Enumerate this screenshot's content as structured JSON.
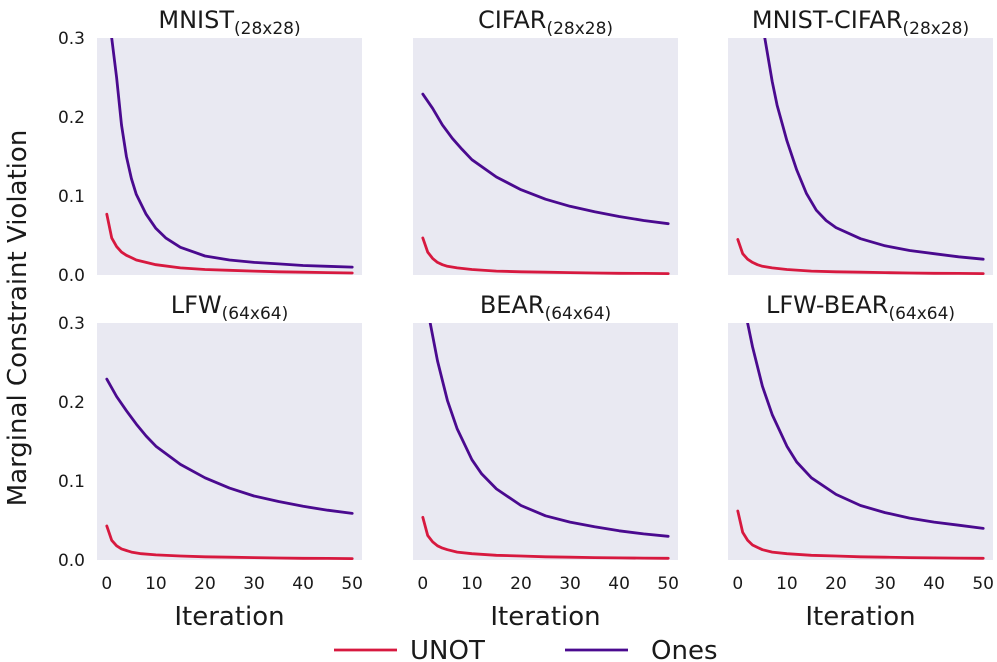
{
  "figure": {
    "ylabel": "Marginal Constraint Violation",
    "xlabel": "Iteration",
    "legend": [
      {
        "name": "UNOT",
        "color": "#d7193f"
      },
      {
        "name": "Ones",
        "color": "#4a0a8f"
      }
    ],
    "colors": {
      "panel_bg": "#e9e9f2",
      "unot": "#d7193f",
      "ones": "#4a0a8f"
    }
  },
  "chart_data": [
    {
      "type": "line",
      "title": "MNIST",
      "subtitle": "(28x28)",
      "xlim": [
        -2,
        52
      ],
      "ylim": [
        0,
        0.3
      ],
      "xticks": [
        0,
        10,
        20,
        30,
        40,
        50
      ],
      "yticks": [
        0.0,
        0.1,
        0.2,
        0.3
      ],
      "series": [
        {
          "name": "UNOT",
          "x": [
            0,
            1,
            2,
            3,
            4,
            5,
            6,
            8,
            10,
            15,
            20,
            25,
            30,
            35,
            40,
            45,
            50
          ],
          "values": [
            0.077,
            0.047,
            0.036,
            0.029,
            0.025,
            0.022,
            0.019,
            0.016,
            0.013,
            0.009,
            0.007,
            0.006,
            0.005,
            0.004,
            0.0035,
            0.003,
            0.0025
          ]
        },
        {
          "name": "Ones",
          "x": [
            1,
            2,
            3,
            4,
            5,
            6,
            8,
            10,
            12,
            15,
            20,
            25,
            30,
            35,
            40,
            45,
            50
          ],
          "values": [
            0.3,
            0.25,
            0.19,
            0.15,
            0.122,
            0.102,
            0.077,
            0.059,
            0.047,
            0.035,
            0.024,
            0.019,
            0.016,
            0.014,
            0.012,
            0.011,
            0.01
          ]
        }
      ]
    },
    {
      "type": "line",
      "title": "CIFAR",
      "subtitle": "(28x28)",
      "xlim": [
        -2,
        52
      ],
      "ylim": [
        0,
        0.3
      ],
      "xticks": [
        0,
        10,
        20,
        30,
        40,
        50
      ],
      "yticks": [
        0.0,
        0.1,
        0.2,
        0.3
      ],
      "series": [
        {
          "name": "UNOT",
          "x": [
            0,
            1,
            2,
            3,
            4,
            5,
            7,
            10,
            15,
            20,
            25,
            30,
            35,
            40,
            45,
            50
          ],
          "values": [
            0.047,
            0.029,
            0.021,
            0.016,
            0.013,
            0.011,
            0.009,
            0.007,
            0.005,
            0.004,
            0.0035,
            0.003,
            0.0025,
            0.0022,
            0.002,
            0.0018
          ]
        },
        {
          "name": "Ones",
          "x": [
            0,
            2,
            4,
            6,
            8,
            10,
            15,
            20,
            25,
            30,
            35,
            40,
            45,
            50
          ],
          "values": [
            0.229,
            0.211,
            0.19,
            0.173,
            0.159,
            0.146,
            0.124,
            0.108,
            0.096,
            0.087,
            0.08,
            0.074,
            0.069,
            0.065
          ]
        }
      ]
    },
    {
      "type": "line",
      "title": "MNIST-CIFAR",
      "subtitle": "(28x28)",
      "xlim": [
        -2,
        52
      ],
      "ylim": [
        0,
        0.3
      ],
      "xticks": [
        0,
        10,
        20,
        30,
        40,
        50
      ],
      "yticks": [
        0.0,
        0.1,
        0.2,
        0.3
      ],
      "series": [
        {
          "name": "UNOT",
          "x": [
            0,
            1,
            2,
            3,
            4,
            5,
            7,
            10,
            15,
            20,
            25,
            30,
            35,
            40,
            45,
            50
          ],
          "values": [
            0.045,
            0.027,
            0.02,
            0.016,
            0.013,
            0.011,
            0.009,
            0.007,
            0.005,
            0.004,
            0.0035,
            0.003,
            0.0025,
            0.0022,
            0.002,
            0.0018
          ]
        },
        {
          "name": "Ones",
          "x": [
            5.5,
            7,
            8,
            10,
            12,
            14,
            16,
            18,
            20,
            25,
            30,
            35,
            40,
            45,
            50
          ],
          "values": [
            0.3,
            0.245,
            0.215,
            0.17,
            0.133,
            0.103,
            0.082,
            0.069,
            0.06,
            0.046,
            0.037,
            0.031,
            0.027,
            0.023,
            0.02
          ]
        }
      ]
    },
    {
      "type": "line",
      "title": "LFW",
      "subtitle": "(64x64)",
      "xlim": [
        -2,
        52
      ],
      "ylim": [
        0,
        0.3
      ],
      "xticks": [
        0,
        10,
        20,
        30,
        40,
        50
      ],
      "yticks": [
        0.0,
        0.1,
        0.2,
        0.3
      ],
      "series": [
        {
          "name": "UNOT",
          "x": [
            0,
            1,
            2,
            3,
            4,
            5,
            7,
            10,
            15,
            20,
            25,
            30,
            35,
            40,
            45,
            50
          ],
          "values": [
            0.043,
            0.025,
            0.018,
            0.014,
            0.012,
            0.01,
            0.008,
            0.0065,
            0.005,
            0.004,
            0.0035,
            0.003,
            0.0025,
            0.0022,
            0.002,
            0.0018
          ]
        },
        {
          "name": "Ones",
          "x": [
            0,
            2,
            4,
            6,
            8,
            10,
            15,
            20,
            25,
            30,
            35,
            40,
            45,
            50
          ],
          "values": [
            0.229,
            0.207,
            0.189,
            0.172,
            0.157,
            0.144,
            0.121,
            0.104,
            0.091,
            0.081,
            0.074,
            0.068,
            0.063,
            0.059
          ]
        }
      ]
    },
    {
      "type": "line",
      "title": "BEAR",
      "subtitle": "(64x64)",
      "xlim": [
        -2,
        52
      ],
      "ylim": [
        0,
        0.3
      ],
      "xticks": [
        0,
        10,
        20,
        30,
        40,
        50
      ],
      "yticks": [
        0.0,
        0.1,
        0.2,
        0.3
      ],
      "series": [
        {
          "name": "UNOT",
          "x": [
            0,
            1,
            2,
            3,
            4,
            5,
            7,
            10,
            15,
            20,
            25,
            30,
            35,
            40,
            45,
            50
          ],
          "values": [
            0.054,
            0.031,
            0.023,
            0.018,
            0.015,
            0.013,
            0.01,
            0.008,
            0.006,
            0.005,
            0.004,
            0.0035,
            0.003,
            0.0027,
            0.0024,
            0.0022
          ]
        },
        {
          "name": "Ones",
          "x": [
            1.5,
            3,
            5,
            7,
            10,
            12,
            15,
            20,
            25,
            30,
            35,
            40,
            45,
            50
          ],
          "values": [
            0.3,
            0.252,
            0.202,
            0.166,
            0.127,
            0.109,
            0.09,
            0.069,
            0.056,
            0.048,
            0.042,
            0.037,
            0.033,
            0.03
          ]
        }
      ]
    },
    {
      "type": "line",
      "title": "LFW-BEAR",
      "subtitle": "(64x64)",
      "xlim": [
        -2,
        52
      ],
      "ylim": [
        0,
        0.3
      ],
      "xticks": [
        0,
        10,
        20,
        30,
        40,
        50
      ],
      "yticks": [
        0.0,
        0.1,
        0.2,
        0.3
      ],
      "series": [
        {
          "name": "UNOT",
          "x": [
            0,
            1,
            2,
            3,
            4,
            5,
            7,
            10,
            15,
            20,
            25,
            30,
            35,
            40,
            45,
            50
          ],
          "values": [
            0.062,
            0.035,
            0.025,
            0.019,
            0.016,
            0.013,
            0.01,
            0.008,
            0.006,
            0.005,
            0.004,
            0.0035,
            0.003,
            0.0027,
            0.0024,
            0.0022
          ]
        },
        {
          "name": "Ones",
          "x": [
            2,
            3,
            5,
            7,
            10,
            12,
            15,
            20,
            25,
            30,
            35,
            40,
            45,
            50
          ],
          "values": [
            0.3,
            0.27,
            0.22,
            0.184,
            0.144,
            0.124,
            0.104,
            0.083,
            0.069,
            0.06,
            0.053,
            0.048,
            0.044,
            0.04
          ]
        }
      ]
    }
  ]
}
